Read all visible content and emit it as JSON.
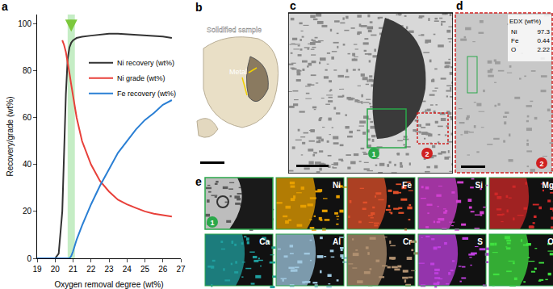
{
  "chart_data": {
    "type": "line",
    "panel_label": "a",
    "x_label": "Oxygen removal degree (wt%)",
    "y_label": "Recovery/grade (wt%)",
    "x": [
      19,
      19.5,
      20,
      20.2,
      20.4,
      20.5,
      20.6,
      20.7,
      20.8,
      20.9,
      21,
      21.2,
      21.5,
      22,
      22.5,
      23,
      23.5,
      24,
      24.5,
      25,
      25.5,
      26,
      26.5
    ],
    "series": [
      {
        "name": "Ni recovery (wt%)",
        "color": "#333333",
        "values": [
          0,
          0,
          0,
          2,
          20,
          45,
          70,
          85,
          90,
          92,
          93,
          94,
          94.5,
          95,
          95.5,
          95.8,
          95.8,
          95.6,
          95.4,
          95.2,
          95,
          94.6,
          94
        ]
      },
      {
        "name": "Ni grade (wt%)",
        "color": "#e8403a",
        "values": [
          null,
          null,
          null,
          null,
          93,
          91,
          88,
          84,
          79,
          74,
          69,
          60,
          50,
          40,
          33,
          28.5,
          25,
          23,
          21.5,
          20,
          19,
          18.3,
          17.8
        ]
      },
      {
        "name": "Fe recovery (wt%)",
        "color": "#2a7fd4",
        "values": [
          0,
          0,
          0,
          0,
          0,
          0,
          0,
          0,
          0,
          1,
          3,
          8,
          14,
          23,
          31,
          38,
          45,
          50,
          55,
          59,
          62,
          65.5,
          67.5
        ]
      }
    ],
    "xlim": [
      19,
      27
    ],
    "xticks": [
      19,
      20,
      21,
      22,
      23,
      24,
      25,
      26,
      27
    ],
    "ylim": [
      0,
      104
    ],
    "yticks": [
      0,
      20,
      40,
      60,
      80,
      100
    ],
    "grid": false,
    "legend": "right",
    "shaded_band": {
      "x": [
        20.7,
        21.1
      ],
      "color": "#7fd67f"
    }
  },
  "panels": [
    {
      "label": "b",
      "title": "Solidified sample",
      "annotation": "Metal"
    },
    {
      "label": "c",
      "markers": [
        "1",
        "2"
      ]
    },
    {
      "label": "d",
      "marker": "2",
      "table_title": "EDX (wt%)",
      "rows": [
        [
          "Ni",
          97.3
        ],
        [
          "Fe",
          0.44
        ],
        [
          "O",
          2.22
        ]
      ]
    },
    {
      "label": "e",
      "marker": "1",
      "maps": [
        {
          "element": "Ni",
          "color": "#e8a000"
        },
        {
          "element": "Fe",
          "color": "#e0502a"
        },
        {
          "element": "Si",
          "color": "#d040d0"
        },
        {
          "element": "Mg",
          "color": "#d02828"
        },
        {
          "element": "Ca",
          "color": "#20a0a0"
        },
        {
          "element": "Al",
          "color": "#a0c8e0"
        },
        {
          "element": "Cr",
          "color": "#b09070"
        },
        {
          "element": "S",
          "color": "#c040e0"
        },
        {
          "element": "O",
          "color": "#40e040"
        }
      ]
    }
  ]
}
